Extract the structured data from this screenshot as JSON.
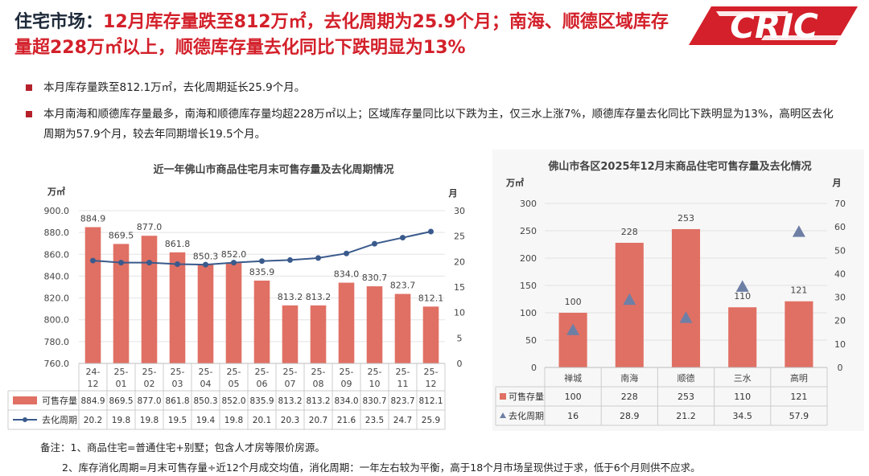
{
  "header": {
    "title_lead": "住宅市场：",
    "title_rest": "12月库存量跌至812万㎡，去化周期为25.9个月；南海、顺德区域库存量超228万㎡以上，顺德库存量去化同比下跌明显为13%",
    "logo_text": "CRIC"
  },
  "bullets": [
    "本月库存量跌至812.1万㎡，去化周期延长25.9个月。",
    "本月南海和顺德库存量最多，南海和顺德库存量均超228万㎡以上；区域库存量同比以下跌为主，仅三水上涨7%，顺德库存量去化同比下跌明显为13%，高明区去化周期为57.9个月，较去年同期增长19.5个月。"
  ],
  "notes": [
    "备注：1、商品住宅=普通住宅+别墅；包含人才房等限价房源。",
    "2、库存消化周期=月末可售存量÷近12个月成交均值，消化周期：一年左右较为平衡，高于18个月市场呈现供过于求，低于6个月则供不应求。"
  ],
  "colors": {
    "bar": "#e07064",
    "line": "#3a5a8c",
    "triangle": "#6e7fa6",
    "accent": "#d3202a"
  },
  "chart_data": [
    {
      "type": "bar",
      "title": "近一年佛山市商品住宅月末可售存量及去化周期情况",
      "ylabel": "万㎡",
      "y2label": "月",
      "ylim": [
        760,
        900
      ],
      "yticks": [
        "760.0",
        "780.0",
        "800.0",
        "820.0",
        "840.0",
        "860.0",
        "880.0",
        "900.0"
      ],
      "y2lim": [
        0,
        30
      ],
      "y2ticks": [
        "0",
        "5",
        "10",
        "15",
        "20",
        "25",
        "30"
      ],
      "categories": [
        "24-12",
        "25-01",
        "25-02",
        "25-03",
        "25-04",
        "25-05",
        "25-06",
        "25-07",
        "25-08",
        "25-09",
        "25-10",
        "25-11",
        "25-12"
      ],
      "series": [
        {
          "name": "可售存量",
          "kind": "bar",
          "values": [
            884.9,
            869.5,
            877.0,
            861.8,
            850.3,
            852.0,
            835.9,
            813.2,
            813.2,
            834.0,
            830.7,
            823.7,
            812.1
          ],
          "labels": [
            "884.9",
            "869.5",
            "877.0",
            "861.8",
            "850.3",
            "852.0",
            "835.9",
            "813.2",
            "813.2",
            "834.0",
            "830.7",
            "823.7",
            "812.1"
          ]
        },
        {
          "name": "去化周期",
          "kind": "line",
          "values": [
            20.2,
            19.8,
            19.8,
            19.5,
            19.4,
            19.8,
            20.1,
            20.3,
            20.7,
            21.6,
            23.5,
            24.7,
            25.9
          ],
          "labels": [
            "20.2",
            "19.8",
            "19.8",
            "19.5",
            "19.4",
            "19.8",
            "20.1",
            "20.3",
            "20.7",
            "21.6",
            "23.5",
            "24.7",
            "25.9"
          ]
        }
      ]
    },
    {
      "type": "bar",
      "title": "佛山市各区2025年12月末商品住宅可售存量及去化情况",
      "ylabel": "万㎡",
      "y2label": "月",
      "ylim": [
        0,
        300
      ],
      "yticks": [
        "0",
        "50",
        "100",
        "150",
        "200",
        "250",
        "300"
      ],
      "y2lim": [
        0,
        70
      ],
      "y2ticks": [
        "0",
        "10",
        "20",
        "30",
        "40",
        "50",
        "60",
        "70"
      ],
      "categories": [
        "禅城",
        "南海",
        "顺德",
        "三水",
        "高明"
      ],
      "series": [
        {
          "name": "可售存量",
          "kind": "bar",
          "values": [
            100,
            228,
            253,
            110,
            121
          ],
          "labels": [
            "100",
            "228",
            "253",
            "110",
            "121"
          ]
        },
        {
          "name": "去化周期",
          "kind": "triangle",
          "values": [
            16,
            28.9,
            21.2,
            34.5,
            57.9
          ],
          "labels": [
            "16",
            "28.9",
            "21.2",
            "34.5",
            "57.9"
          ]
        }
      ]
    }
  ]
}
